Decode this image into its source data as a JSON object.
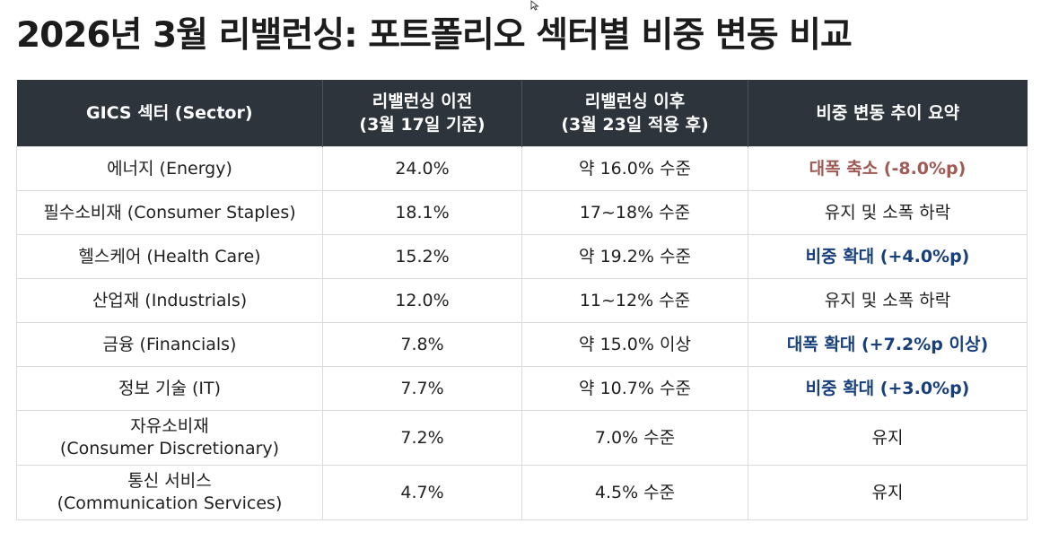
{
  "title": "2026년 3월 리밸런싱: 포트폴리오 섹터별 비중 변동 비교",
  "colors": {
    "header_bg": "#2d343b",
    "decrease": "#a05a55",
    "increase": "#173f7c"
  },
  "table": {
    "headers": [
      {
        "line1": "GICS 섹터 (Sector)",
        "line2": ""
      },
      {
        "line1": "리밸런싱 이전",
        "line2": "(3월 17일 기준)"
      },
      {
        "line1": "리밸런싱 이후",
        "line2": "(3월 23일 적용 후)"
      },
      {
        "line1": "비중 변동 추이 요약",
        "line2": ""
      }
    ],
    "rows": [
      {
        "sector_line1": "에너지 (Energy)",
        "sector_line2": "",
        "before": "24.0%",
        "after": "약 16.0% 수준",
        "trend": "대폭 축소 (-8.0%p)",
        "trend_type": "down"
      },
      {
        "sector_line1": "필수소비재 (Consumer Staples)",
        "sector_line2": "",
        "before": "18.1%",
        "after": "17~18% 수준",
        "trend": "유지 및 소폭 하락",
        "trend_type": "flat"
      },
      {
        "sector_line1": "헬스케어 (Health Care)",
        "sector_line2": "",
        "before": "15.2%",
        "after": "약 19.2% 수준",
        "trend": "비중 확대 (+4.0%p)",
        "trend_type": "up"
      },
      {
        "sector_line1": "산업재 (Industrials)",
        "sector_line2": "",
        "before": "12.0%",
        "after": "11~12% 수준",
        "trend": "유지 및 소폭 하락",
        "trend_type": "flat"
      },
      {
        "sector_line1": "금융 (Financials)",
        "sector_line2": "",
        "before": "7.8%",
        "after": "약 15.0% 이상",
        "trend": "대폭 확대 (+7.2%p 이상)",
        "trend_type": "up"
      },
      {
        "sector_line1": "정보 기술 (IT)",
        "sector_line2": "",
        "before": "7.7%",
        "after": "약 10.7% 수준",
        "trend": "비중 확대 (+3.0%p)",
        "trend_type": "up"
      },
      {
        "sector_line1": "자유소비재",
        "sector_line2": "(Consumer Discretionary)",
        "before": "7.2%",
        "after": "7.0% 수준",
        "trend": "유지",
        "trend_type": "flat"
      },
      {
        "sector_line1": "통신 서비스",
        "sector_line2": "(Communication Services)",
        "before": "4.7%",
        "after": "4.5% 수준",
        "trend": "유지",
        "trend_type": "flat"
      }
    ]
  }
}
